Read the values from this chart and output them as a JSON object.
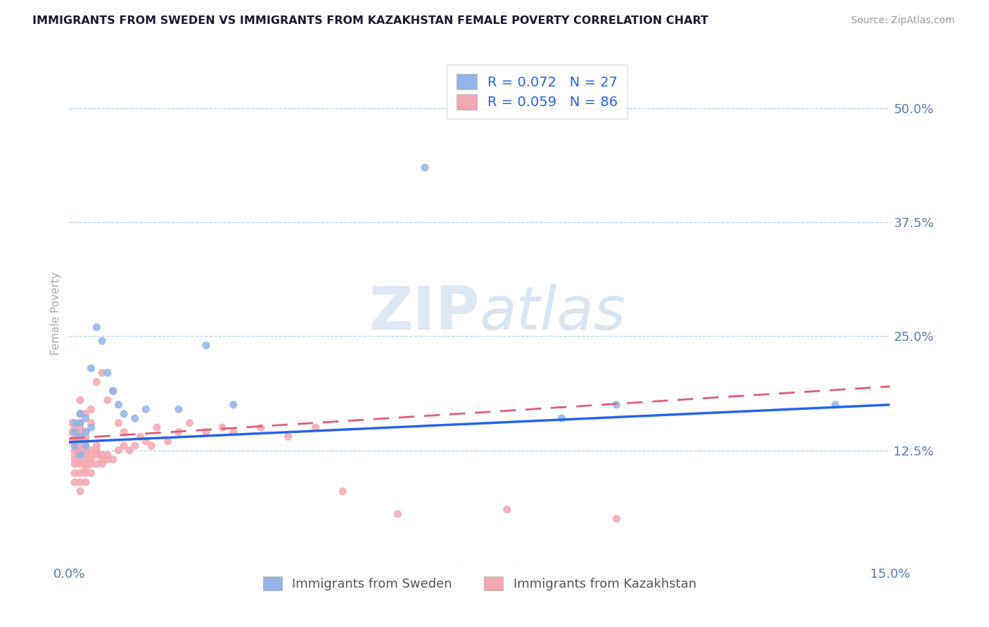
{
  "title": "IMMIGRANTS FROM SWEDEN VS IMMIGRANTS FROM KAZAKHSTAN FEMALE POVERTY CORRELATION CHART",
  "source": "Source: ZipAtlas.com",
  "ylabel": "Female Poverty",
  "legend_label1": "Immigrants from Sweden",
  "legend_label2": "Immigrants from Kazakhstan",
  "R1": 0.072,
  "N1": 27,
  "R2": 0.059,
  "N2": 86,
  "xlim": [
    0.0,
    0.15
  ],
  "ylim": [
    0.0,
    0.55
  ],
  "yticks": [
    0.0,
    0.125,
    0.25,
    0.375,
    0.5
  ],
  "ytick_labels": [
    "",
    "12.5%",
    "25.0%",
    "37.5%",
    "50.0%"
  ],
  "xticks": [
    0.0,
    0.15
  ],
  "xtick_labels": [
    "0.0%",
    "15.0%"
  ],
  "color_sweden": "#92b4e8",
  "color_kazakhstan": "#f4a7b0",
  "line_color_sweden": "#2563eb",
  "line_color_kazakhstan": "#e05c7a",
  "background_color": "#ffffff",
  "grid_color": "#b8cce8",
  "title_color": "#1a1a2e",
  "axis_tick_color": "#5b7ab5",
  "watermark_zip": "ZIP",
  "watermark_atlas": "atlas",
  "sweden_x": [
    0.001,
    0.001,
    0.001,
    0.002,
    0.002,
    0.002,
    0.002,
    0.003,
    0.003,
    0.003,
    0.004,
    0.004,
    0.005,
    0.006,
    0.007,
    0.008,
    0.009,
    0.01,
    0.012,
    0.014,
    0.02,
    0.025,
    0.03,
    0.065,
    0.09,
    0.1,
    0.14
  ],
  "sweden_y": [
    0.13,
    0.145,
    0.155,
    0.12,
    0.14,
    0.155,
    0.165,
    0.13,
    0.145,
    0.16,
    0.15,
    0.215,
    0.26,
    0.245,
    0.21,
    0.19,
    0.175,
    0.165,
    0.16,
    0.17,
    0.17,
    0.24,
    0.175,
    0.435,
    0.16,
    0.175,
    0.175
  ],
  "kaz_x": [
    0.0005,
    0.0005,
    0.0005,
    0.001,
    0.001,
    0.001,
    0.001,
    0.001,
    0.001,
    0.001,
    0.001,
    0.001,
    0.001,
    0.0015,
    0.0015,
    0.002,
    0.002,
    0.002,
    0.002,
    0.002,
    0.002,
    0.002,
    0.002,
    0.002,
    0.002,
    0.002,
    0.002,
    0.002,
    0.002,
    0.002,
    0.003,
    0.003,
    0.003,
    0.003,
    0.003,
    0.003,
    0.003,
    0.003,
    0.003,
    0.003,
    0.003,
    0.003,
    0.004,
    0.004,
    0.004,
    0.004,
    0.004,
    0.004,
    0.004,
    0.005,
    0.005,
    0.005,
    0.005,
    0.005,
    0.006,
    0.006,
    0.006,
    0.006,
    0.007,
    0.007,
    0.007,
    0.008,
    0.008,
    0.009,
    0.009,
    0.01,
    0.01,
    0.011,
    0.012,
    0.013,
    0.014,
    0.015,
    0.016,
    0.018,
    0.02,
    0.022,
    0.025,
    0.028,
    0.03,
    0.035,
    0.04,
    0.045,
    0.05,
    0.06,
    0.08,
    0.1
  ],
  "kaz_y": [
    0.135,
    0.145,
    0.155,
    0.09,
    0.1,
    0.11,
    0.115,
    0.12,
    0.125,
    0.13,
    0.135,
    0.14,
    0.15,
    0.125,
    0.14,
    0.08,
    0.09,
    0.1,
    0.11,
    0.115,
    0.12,
    0.125,
    0.13,
    0.135,
    0.14,
    0.145,
    0.15,
    0.155,
    0.165,
    0.18,
    0.09,
    0.1,
    0.105,
    0.11,
    0.115,
    0.12,
    0.125,
    0.13,
    0.135,
    0.14,
    0.145,
    0.165,
    0.1,
    0.11,
    0.115,
    0.12,
    0.125,
    0.155,
    0.17,
    0.11,
    0.12,
    0.125,
    0.13,
    0.2,
    0.11,
    0.115,
    0.12,
    0.21,
    0.115,
    0.12,
    0.18,
    0.115,
    0.19,
    0.125,
    0.155,
    0.13,
    0.145,
    0.125,
    0.13,
    0.14,
    0.135,
    0.13,
    0.15,
    0.135,
    0.145,
    0.155,
    0.145,
    0.15,
    0.145,
    0.15,
    0.14,
    0.15,
    0.08,
    0.055,
    0.06,
    0.05
  ],
  "trend_sweden_y0": 0.134,
  "trend_sweden_y1": 0.175,
  "trend_kaz_y0": 0.138,
  "trend_kaz_y1": 0.195
}
